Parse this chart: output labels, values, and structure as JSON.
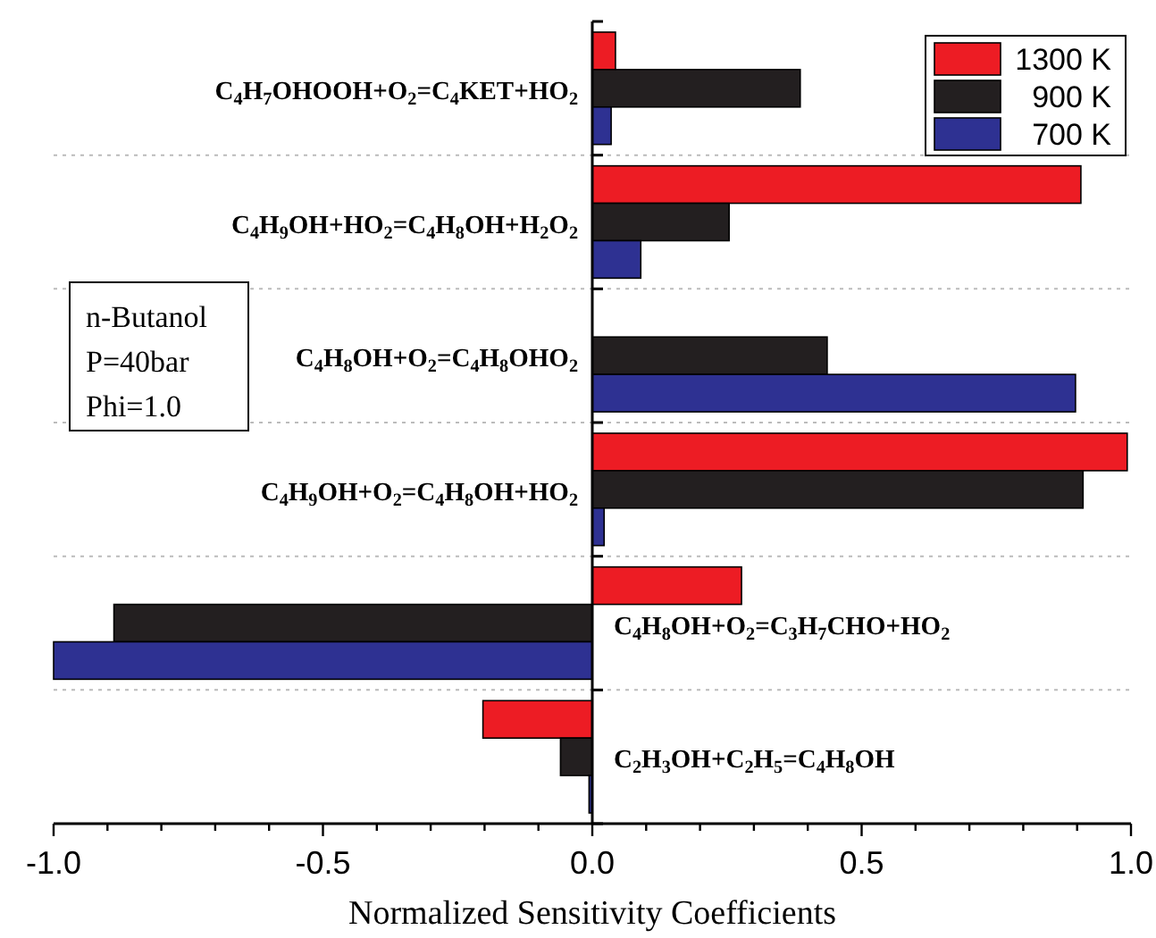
{
  "chart_data": {
    "type": "bar",
    "orientation": "horizontal",
    "xlabel": "Normalized Sensitivity Coefficients",
    "categories": [
      "C$_{4}$H$_{7}$OHOOH+O$_{2}$=C$_{4}$KET+HO$_{2}$",
      "C$_{4}$H$_{9}$OH+HO$_{2}$=C$_{4}$H$_{8}$OH+H$_{2}$O$_{2}$",
      "C$_{4}$H$_{8}$OH+O$_{2}$=C$_{4}$H$_{8}$OHO$_{2}$",
      "C$_{4}$H$_{9}$OH+O$_{2}$=C$_{4}$H$_{8}$OH+HO$_{2}$",
      "C$_{4}$H$_{8}$OH+O$_{2}$=C$_{3}$H$_{7}$CHO+HO$_{2}$",
      "C$_{2}$H$_{3}$OH+C$_{2}$H$_{5}$=C$_{4}$H$_{8}$OH"
    ],
    "series": [
      {
        "name": "1300 K",
        "color": "#ed1c24",
        "values": [
          0.043,
          0.907,
          0,
          0.993,
          0.277,
          -0.203
        ]
      },
      {
        "name": "900 K",
        "color": "#231f20",
        "values": [
          0.386,
          0.254,
          0.436,
          0.911,
          -0.888,
          -0.059
        ]
      },
      {
        "name": "700 K",
        "color": "#2e3192",
        "values": [
          0.035,
          0.09,
          0.897,
          0.022,
          -1.0,
          -0.006
        ]
      }
    ],
    "xlim": [
      -1,
      1
    ],
    "xticks": [
      {
        "value": -1,
        "label": "-1.0"
      },
      {
        "value": -0.9,
        "label": null
      },
      {
        "value": -0.8,
        "label": null
      },
      {
        "value": -0.7,
        "label": null
      },
      {
        "value": -0.6,
        "label": null
      },
      {
        "value": -0.5,
        "label": "-0.5"
      },
      {
        "value": -0.4,
        "label": null
      },
      {
        "value": -0.3,
        "label": null
      },
      {
        "value": -0.2,
        "label": null
      },
      {
        "value": -0.1,
        "label": null
      },
      {
        "value": 0,
        "label": "0.0"
      },
      {
        "value": 0.1,
        "label": null
      },
      {
        "value": 0.2,
        "label": null
      },
      {
        "value": 0.3,
        "label": null
      },
      {
        "value": 0.4,
        "label": null
      },
      {
        "value": 0.5,
        "label": "0.5"
      },
      {
        "value": 0.6,
        "label": null
      },
      {
        "value": 0.7,
        "label": null
      },
      {
        "value": 0.8,
        "label": null
      },
      {
        "value": 0.9,
        "label": null
      },
      {
        "value": 1,
        "label": "1.0"
      }
    ],
    "grid": "y",
    "legend": "top right",
    "annotations": [
      "n-Butanol",
      "P=40bar",
      "Phi=1.0"
    ]
  }
}
